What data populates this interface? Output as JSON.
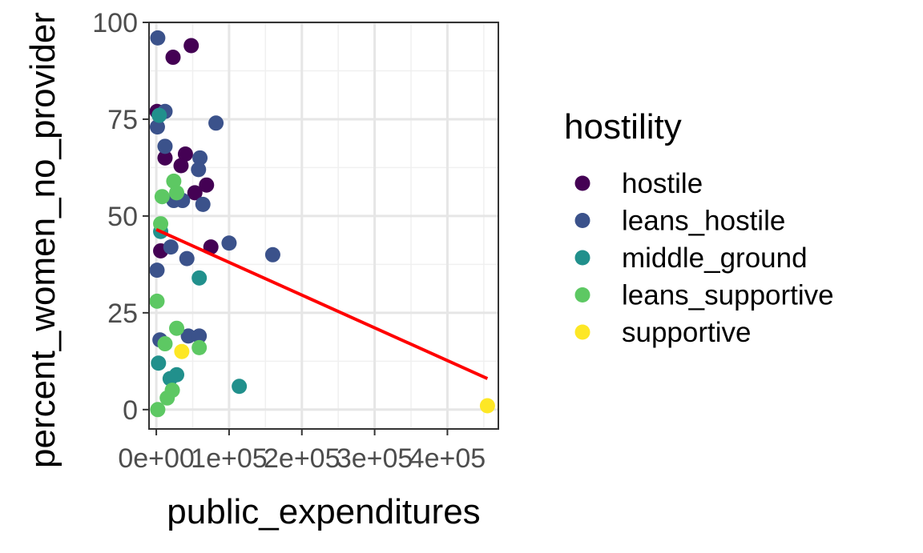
{
  "chart_data": {
    "type": "scatter",
    "xlabel": "public_expenditures",
    "ylabel": "percent_women_no_provider",
    "xlim": [
      -10000,
      470000
    ],
    "ylim": [
      -5,
      100
    ],
    "x_ticks": [
      0,
      100000,
      200000,
      300000,
      400000
    ],
    "x_tick_labels": [
      "0e+00",
      "1e+05",
      "2e+05",
      "3e+05",
      "4e+05"
    ],
    "y_ticks": [
      0,
      25,
      50,
      75,
      100
    ],
    "y_tick_labels": [
      "0",
      "25",
      "50",
      "75",
      "100"
    ],
    "grid": true,
    "legend": {
      "title": "hostility",
      "position": "right",
      "entries": [
        {
          "label": "hostile",
          "color": "#440154"
        },
        {
          "label": "leans_hostile",
          "color": "#3B528B"
        },
        {
          "label": "middle_ground",
          "color": "#21908C"
        },
        {
          "label": "leans_supportive",
          "color": "#5DC863"
        },
        {
          "label": "supportive",
          "color": "#FDE725"
        }
      ]
    },
    "series": [
      {
        "name": "hostile",
        "color": "#440154",
        "points": [
          [
            23000,
            91
          ],
          [
            48000,
            94
          ],
          [
            1000,
            77
          ],
          [
            12000,
            65
          ],
          [
            40000,
            66
          ],
          [
            34000,
            63
          ],
          [
            69000,
            58
          ],
          [
            53000,
            56
          ],
          [
            75000,
            42
          ],
          [
            6000,
            41
          ]
        ]
      },
      {
        "name": "leans_hostile",
        "color": "#3B528B",
        "points": [
          [
            2000,
            96
          ],
          [
            12000,
            77
          ],
          [
            1500,
            73
          ],
          [
            82000,
            74
          ],
          [
            12000,
            68
          ],
          [
            60000,
            65
          ],
          [
            58000,
            62
          ],
          [
            24000,
            54
          ],
          [
            36000,
            54
          ],
          [
            64000,
            53
          ],
          [
            100000,
            43
          ],
          [
            160000,
            40
          ],
          [
            20000,
            42
          ],
          [
            42000,
            39
          ],
          [
            1000,
            36
          ],
          [
            5000,
            18
          ],
          [
            44000,
            19
          ],
          [
            59000,
            19
          ]
        ]
      },
      {
        "name": "middle_ground",
        "color": "#21908C",
        "points": [
          [
            4000,
            76
          ],
          [
            6000,
            46
          ],
          [
            59000,
            34
          ],
          [
            3000,
            12
          ],
          [
            28000,
            9
          ],
          [
            19000,
            8
          ],
          [
            114000,
            6
          ]
        ]
      },
      {
        "name": "leans_supportive",
        "color": "#5DC863",
        "points": [
          [
            24000,
            59
          ],
          [
            8000,
            55
          ],
          [
            28000,
            56
          ],
          [
            6000,
            48
          ],
          [
            1000,
            28
          ],
          [
            28000,
            21
          ],
          [
            12000,
            17
          ],
          [
            59000,
            16
          ],
          [
            22000,
            5
          ],
          [
            15000,
            3
          ],
          [
            2000,
            0
          ]
        ]
      },
      {
        "name": "supportive",
        "color": "#FDE725",
        "points": [
          [
            35000,
            15
          ],
          [
            455000,
            1
          ]
        ]
      }
    ],
    "trend_line": {
      "color": "#FF0000",
      "points": [
        [
          0,
          46.5
        ],
        [
          455000,
          8
        ]
      ]
    }
  }
}
